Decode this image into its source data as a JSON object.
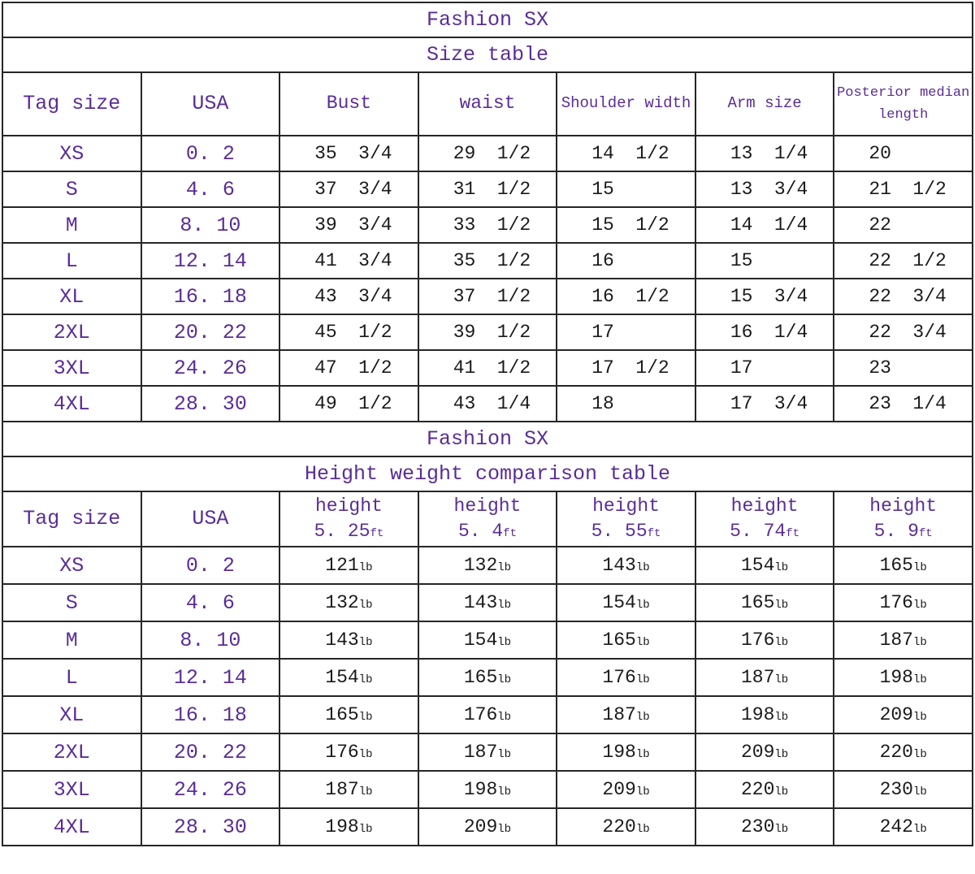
{
  "colors": {
    "accent": "#5a2d96",
    "text": "#1a1a1a",
    "border": "#262626",
    "background": "#ffffff"
  },
  "size_table": {
    "title": "Fashion SX",
    "subtitle": "Size table",
    "columns": [
      "Tag size",
      "USA",
      "Bust",
      "waist",
      "Shoulder width",
      "Arm size",
      "Posterior median length"
    ],
    "rows": [
      {
        "tag": "XS",
        "usa": "0. 2",
        "measurements": [
          "35 3/4",
          "29 1/2",
          "14 1/2",
          "13 1/4",
          "20"
        ]
      },
      {
        "tag": "S",
        "usa": "4. 6",
        "measurements": [
          "37 3/4",
          "31 1/2",
          "15",
          "13 3/4",
          "21 1/2"
        ]
      },
      {
        "tag": "M",
        "usa": "8. 10",
        "measurements": [
          "39 3/4",
          "33 1/2",
          "15 1/2",
          "14 1/4",
          "22"
        ]
      },
      {
        "tag": "L",
        "usa": "12. 14",
        "measurements": [
          "41 3/4",
          "35 1/2",
          "16",
          "15",
          "22 1/2"
        ]
      },
      {
        "tag": "XL",
        "usa": "16. 18",
        "measurements": [
          "43 3/4",
          "37 1/2",
          "16 1/2",
          "15 3/4",
          "22 3/4"
        ]
      },
      {
        "tag": "2XL",
        "usa": "20. 22",
        "measurements": [
          "45 1/2",
          "39 1/2",
          "17",
          "16 1/4",
          "22 3/4"
        ]
      },
      {
        "tag": "3XL",
        "usa": "24. 26",
        "measurements": [
          "47 1/2",
          "41 1/2",
          "17 1/2",
          "17",
          "23"
        ]
      },
      {
        "tag": "4XL",
        "usa": "28. 30",
        "measurements": [
          "49 1/2",
          "43 1/4",
          "18",
          "17 3/4",
          "23 1/4"
        ]
      }
    ]
  },
  "height_table": {
    "title": "Fashion SX",
    "subtitle": "Height weight comparison table",
    "columns": {
      "tag": "Tag size",
      "usa": "USA"
    },
    "height_label": "height",
    "heights": [
      "5. 25",
      "5. 4",
      "5. 55",
      "5. 74",
      "5. 9"
    ],
    "height_unit": "ft",
    "weight_unit": "lb",
    "rows": [
      {
        "tag": "XS",
        "usa": "0. 2",
        "weights": [
          "121",
          "132",
          "143",
          "154",
          "165"
        ]
      },
      {
        "tag": "S",
        "usa": "4. 6",
        "weights": [
          "132",
          "143",
          "154",
          "165",
          "176"
        ]
      },
      {
        "tag": "M",
        "usa": "8. 10",
        "weights": [
          "143",
          "154",
          "165",
          "176",
          "187"
        ]
      },
      {
        "tag": "L",
        "usa": "12. 14",
        "weights": [
          "154",
          "165",
          "176",
          "187",
          "198"
        ]
      },
      {
        "tag": "XL",
        "usa": "16. 18",
        "weights": [
          "165",
          "176",
          "187",
          "198",
          "209"
        ]
      },
      {
        "tag": "2XL",
        "usa": "20. 22",
        "weights": [
          "176",
          "187",
          "198",
          "209",
          "220"
        ]
      },
      {
        "tag": "3XL",
        "usa": "24. 26",
        "weights": [
          "187",
          "198",
          "209",
          "220",
          "230"
        ]
      },
      {
        "tag": "4XL",
        "usa": "28. 30",
        "weights": [
          "198",
          "209",
          "220",
          "230",
          "242"
        ]
      }
    ]
  }
}
